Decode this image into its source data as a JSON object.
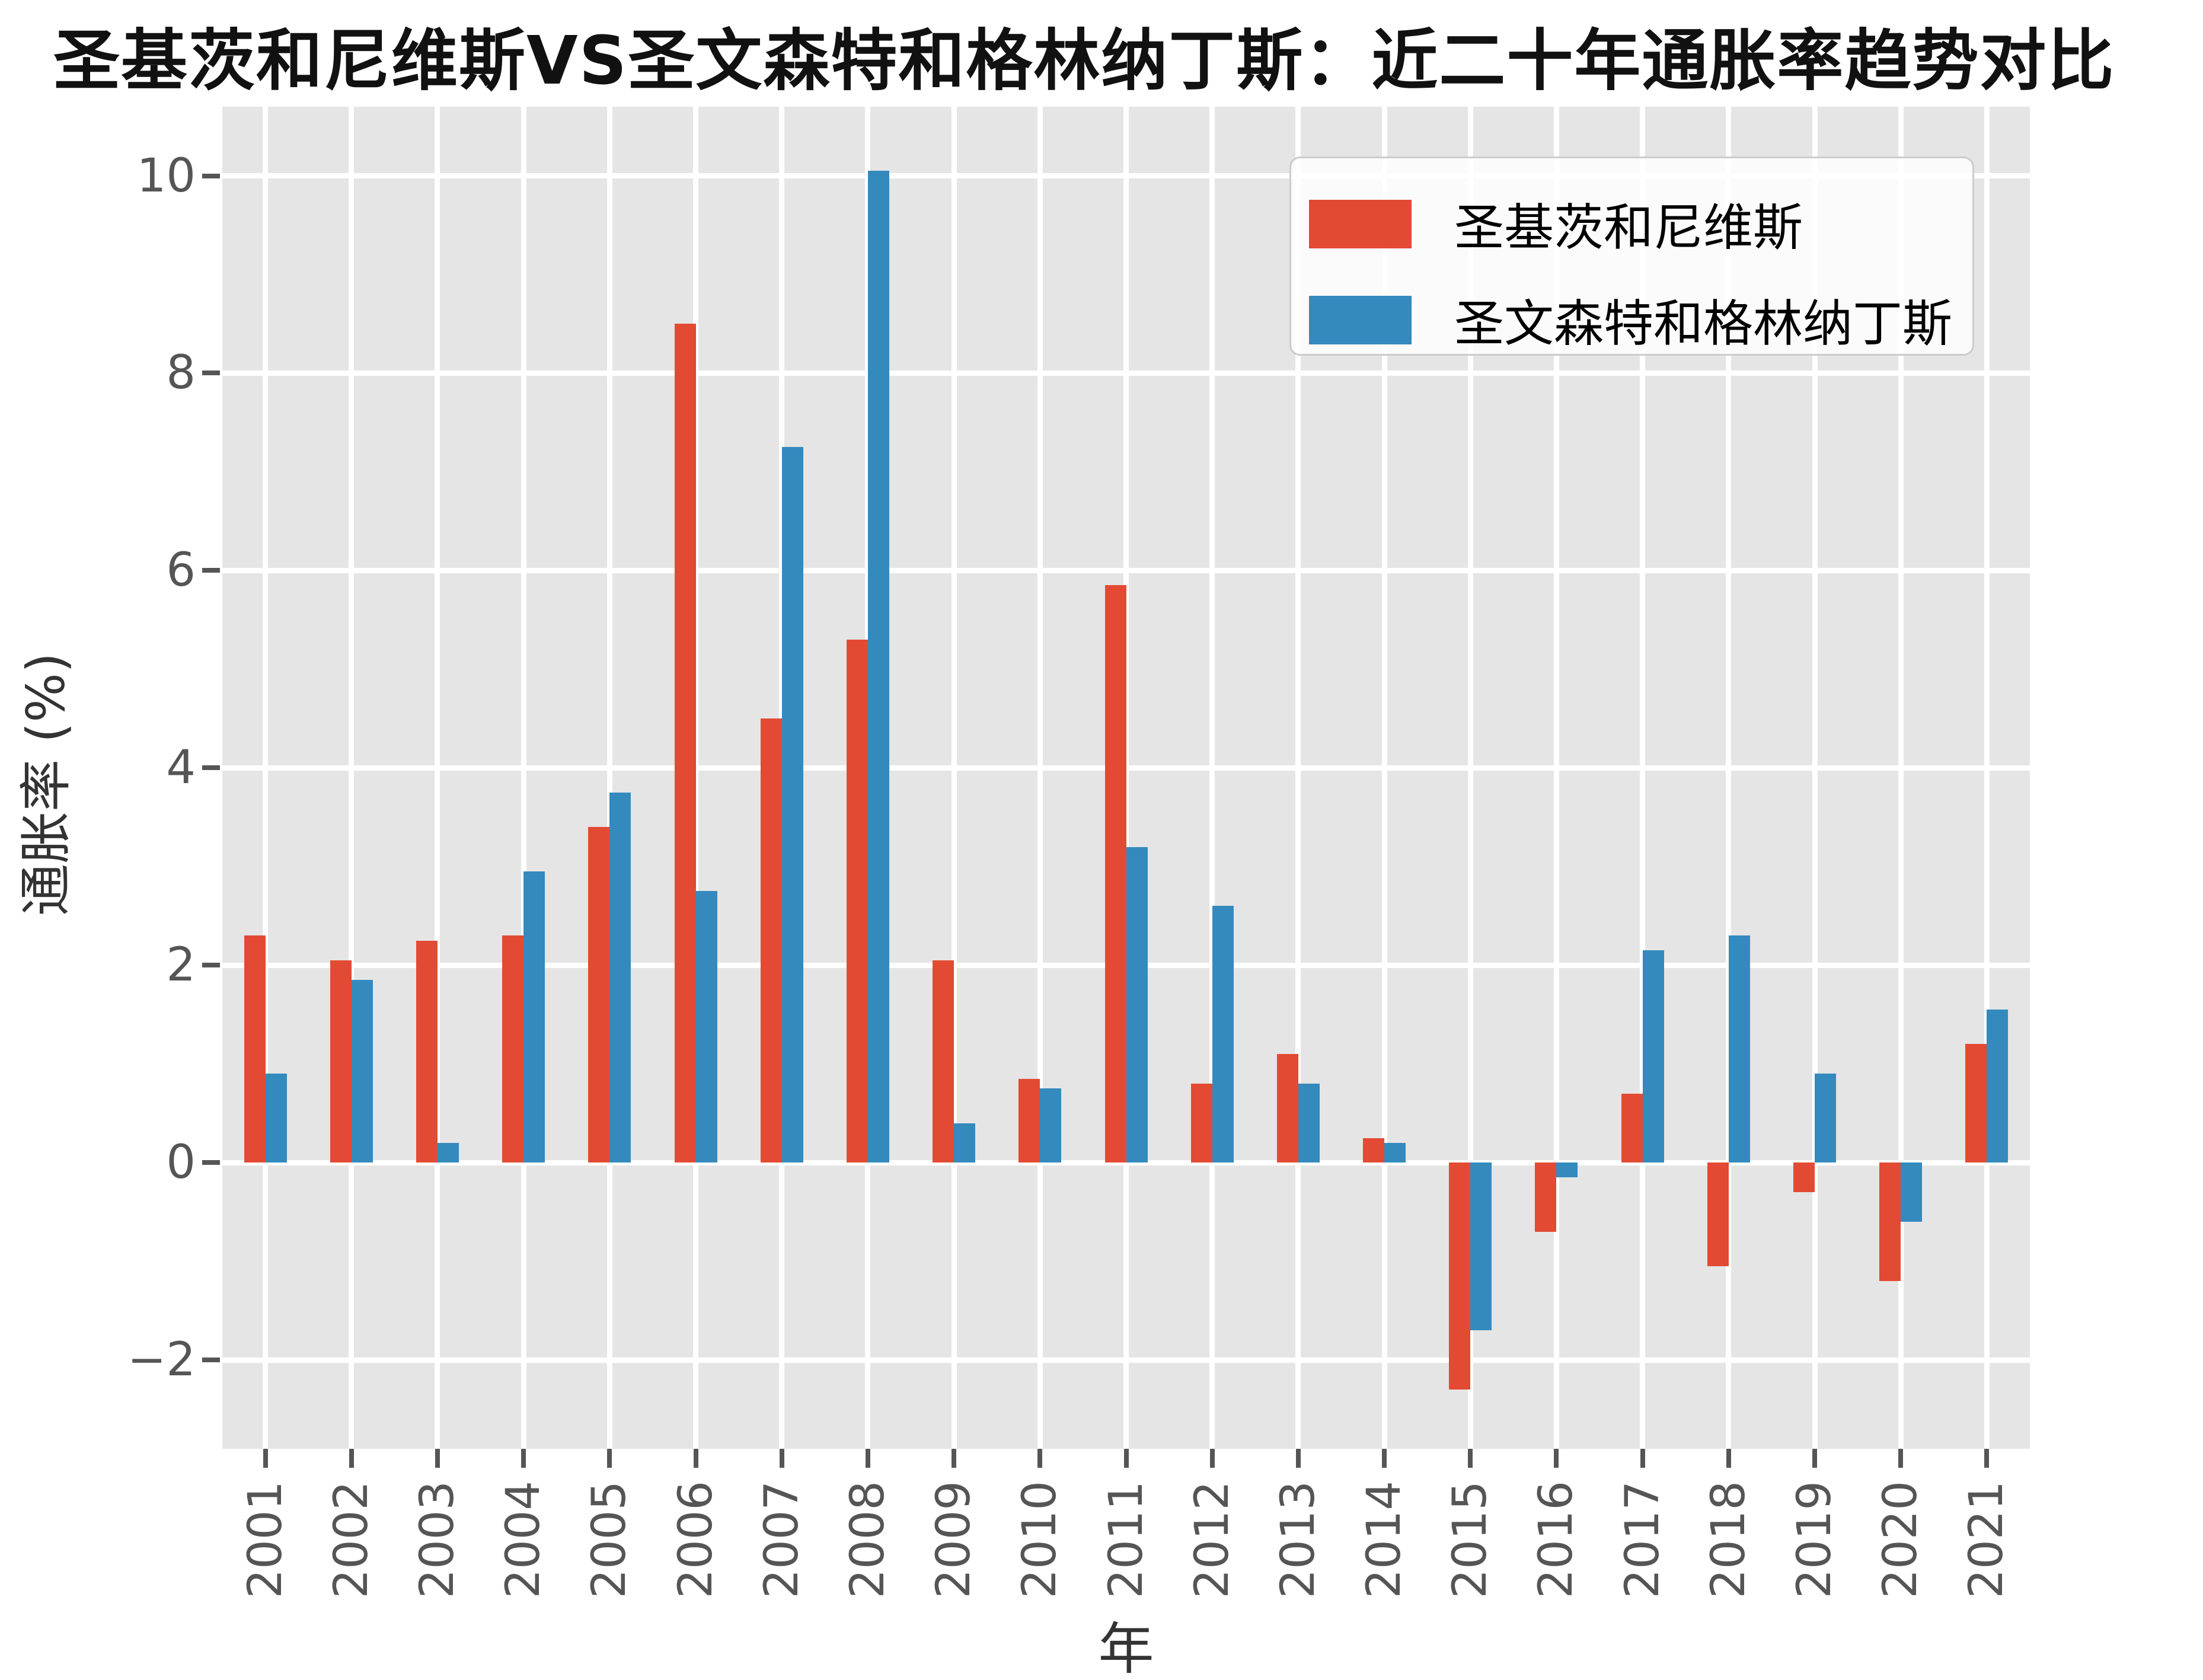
{
  "title": "圣基茨和尼维斯VS圣文森特和格林纳丁斯：近二十年通胀率趋势对比",
  "chart_data": {
    "type": "bar",
    "title": "圣基茨和尼维斯VS圣文森特和格林纳丁斯：近二十年通胀率趋势对比",
    "xlabel": "年",
    "ylabel": "通胀率 (%)",
    "categories": [
      "2001",
      "2002",
      "2003",
      "2004",
      "2005",
      "2006",
      "2007",
      "2008",
      "2009",
      "2010",
      "2011",
      "2012",
      "2013",
      "2014",
      "2015",
      "2016",
      "2017",
      "2018",
      "2019",
      "2020",
      "2021"
    ],
    "series": [
      {
        "id": "skn",
        "name": "圣基茨和尼维斯",
        "color": "#E24A33",
        "values": [
          2.3,
          2.05,
          2.25,
          2.3,
          3.4,
          8.5,
          4.5,
          5.3,
          2.05,
          0.85,
          5.85,
          0.8,
          1.1,
          0.25,
          -2.3,
          -0.7,
          0.7,
          -1.05,
          -0.3,
          -1.2,
          1.2
        ]
      },
      {
        "id": "svg",
        "name": "圣文森特和格林纳丁斯",
        "color": "#348ABD",
        "values": [
          0.9,
          1.85,
          0.2,
          2.95,
          3.75,
          2.75,
          7.25,
          10.05,
          0.4,
          0.75,
          3.2,
          2.6,
          0.8,
          0.2,
          -1.7,
          -0.15,
          2.15,
          2.3,
          0.9,
          -0.6,
          1.55
        ]
      }
    ],
    "yticks": [
      -2,
      0,
      2,
      4,
      6,
      8,
      10
    ],
    "ylim": [
      -2.9,
      10.7
    ],
    "grid": true,
    "legend_position": "upper right",
    "panel_bg": "#E5E5E5",
    "grid_color": "#FFFFFF",
    "tick_color": "#555555"
  }
}
